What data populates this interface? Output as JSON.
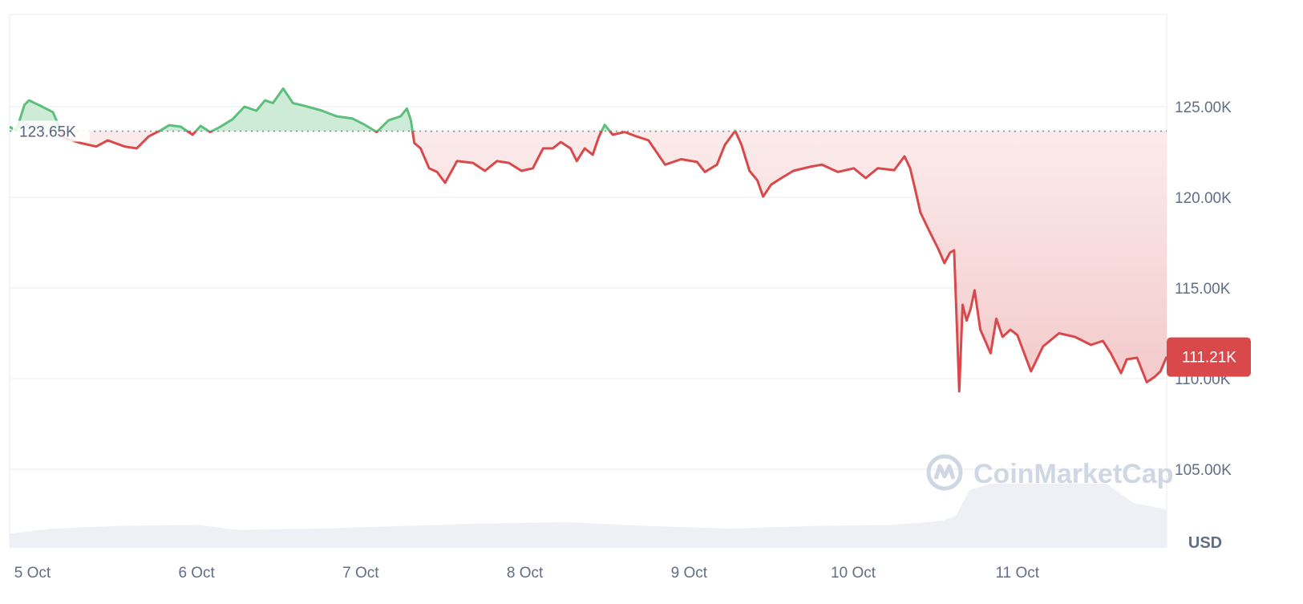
{
  "chart_data": {
    "type": "line",
    "currency_label": "USD",
    "baseline_value": 123.65,
    "baseline_label": "123.65K",
    "current_value": 111.21,
    "current_label": "111.21K",
    "ylim": [
      102,
      127.5
    ],
    "y_ticks": [
      {
        "value": 125,
        "label": "125.00K"
      },
      {
        "value": 120,
        "label": "120.00K"
      },
      {
        "value": 115,
        "label": "115.00K"
      },
      {
        "value": 110,
        "label": "110.00K"
      },
      {
        "value": 105,
        "label": "105.00K"
      }
    ],
    "x_ticks": [
      "5 Oct",
      "6 Oct",
      "7 Oct",
      "8 Oct",
      "9 Oct",
      "10 Oct",
      "11 Oct"
    ],
    "xlim": [
      "4 Oct 20:40",
      "11 Oct 21:50"
    ],
    "grid": true,
    "colors": {
      "up": "#5cbf7c",
      "up_fill": "#cdebd7",
      "down": "#d9484a",
      "down_fill": "#f3c9ca",
      "grid": "#eff2f5",
      "volume": "#eef0f5"
    },
    "watermark": "CoinMarketCap",
    "series": [
      {
        "values": [
          [
            "4 Oct 20:40",
            123.89
          ],
          [
            "4 Oct 21:40",
            123.7
          ],
          [
            "4 Oct 22:50",
            125.1
          ],
          [
            "4 Oct 23:30",
            125.35
          ],
          [
            "5 Oct 01:10",
            125.05
          ],
          [
            "5 Oct 03:00",
            124.7
          ],
          [
            "5 Oct 03:30",
            124.25
          ],
          [
            "5 Oct 04:40",
            123.27
          ],
          [
            "5 Oct 07:00",
            123.0
          ],
          [
            "5 Oct 09:20",
            122.8
          ],
          [
            "5 Oct 11:00",
            123.14
          ],
          [
            "5 Oct 13:30",
            122.8
          ],
          [
            "5 Oct 15:15",
            122.7
          ],
          [
            "5 Oct 17:00",
            123.36
          ],
          [
            "5 Oct 18:45",
            123.7
          ],
          [
            "5 Oct 20:00",
            123.98
          ],
          [
            "5 Oct 21:40",
            123.9
          ],
          [
            "5 Oct 23:25",
            123.45
          ],
          [
            "6 Oct 00:35",
            123.94
          ],
          [
            "6 Oct 02:00",
            123.6
          ],
          [
            "6 Oct 03:30",
            123.9
          ],
          [
            "6 Oct 05:15",
            124.3
          ],
          [
            "6 Oct 07:00",
            125.0
          ],
          [
            "6 Oct 08:45",
            124.78
          ],
          [
            "6 Oct 10:00",
            125.35
          ],
          [
            "6 Oct 11:10",
            125.2
          ],
          [
            "6 Oct 12:40",
            126.0
          ],
          [
            "6 Oct 14:05",
            125.2
          ],
          [
            "6 Oct 15:50",
            125.04
          ],
          [
            "6 Oct 18:10",
            124.8
          ],
          [
            "6 Oct 20:30",
            124.47
          ],
          [
            "6 Oct 22:50",
            124.34
          ],
          [
            "7 Oct 00:35",
            124.0
          ],
          [
            "7 Oct 02:20",
            123.6
          ],
          [
            "7 Oct 04:05",
            124.25
          ],
          [
            "7 Oct 05:50",
            124.47
          ],
          [
            "7 Oct 06:45",
            124.9
          ],
          [
            "7 Oct 07:20",
            124.25
          ],
          [
            "7 Oct 07:50",
            123.0
          ],
          [
            "7 Oct 08:45",
            122.7
          ],
          [
            "7 Oct 10:00",
            121.6
          ],
          [
            "7 Oct 11:10",
            121.4
          ],
          [
            "7 Oct 12:20",
            120.8
          ],
          [
            "7 Oct 14:05",
            122.0
          ],
          [
            "7 Oct 16:25",
            121.9
          ],
          [
            "7 Oct 18:10",
            121.46
          ],
          [
            "7 Oct 19:55",
            122.0
          ],
          [
            "7 Oct 21:40",
            121.9
          ],
          [
            "7 Oct 23:30",
            121.46
          ],
          [
            "8 Oct 01:10",
            121.6
          ],
          [
            "8 Oct 02:40",
            122.7
          ],
          [
            "8 Oct 04:05",
            122.7
          ],
          [
            "8 Oct 05:15",
            123.05
          ],
          [
            "8 Oct 06:40",
            122.7
          ],
          [
            "8 Oct 07:35",
            122.0
          ],
          [
            "8 Oct 08:45",
            122.7
          ],
          [
            "8 Oct 09:55",
            122.35
          ],
          [
            "8 Oct 10:50",
            123.36
          ],
          [
            "8 Oct 11:40",
            124.0
          ],
          [
            "8 Oct 12:50",
            123.45
          ],
          [
            "8 Oct 14:35",
            123.6
          ],
          [
            "8 Oct 16:20",
            123.36
          ],
          [
            "8 Oct 18:05",
            123.14
          ],
          [
            "8 Oct 20:30",
            121.8
          ],
          [
            "8 Oct 22:50",
            122.1
          ],
          [
            "9 Oct 01:10",
            121.95
          ],
          [
            "9 Oct 02:20",
            121.4
          ],
          [
            "9 Oct 04:05",
            121.8
          ],
          [
            "9 Oct 05:15",
            122.9
          ],
          [
            "9 Oct 06:45",
            123.67
          ],
          [
            "9 Oct 07:40",
            122.9
          ],
          [
            "9 Oct 08:50",
            121.46
          ],
          [
            "9 Oct 10:00",
            120.93
          ],
          [
            "9 Oct 10:50",
            120.04
          ],
          [
            "9 Oct 12:00",
            120.7
          ],
          [
            "9 Oct 13:30",
            121.06
          ],
          [
            "9 Oct 15:15",
            121.46
          ],
          [
            "9 Oct 17:40",
            121.68
          ],
          [
            "9 Oct 19:25",
            121.8
          ],
          [
            "9 Oct 21:45",
            121.4
          ],
          [
            "10 Oct 00:05",
            121.6
          ],
          [
            "10 Oct 01:50",
            121.06
          ],
          [
            "10 Oct 03:35",
            121.6
          ],
          [
            "10 Oct 06:00",
            121.5
          ],
          [
            "10 Oct 07:30",
            122.26
          ],
          [
            "10 Oct 08:20",
            121.6
          ],
          [
            "10 Oct 09:10",
            120.27
          ],
          [
            "10 Oct 09:50",
            119.16
          ],
          [
            "10 Oct 11:15",
            118.05
          ],
          [
            "10 Oct 12:25",
            117.17
          ],
          [
            "10 Oct 13:20",
            116.37
          ],
          [
            "10 Oct 14:10",
            116.95
          ],
          [
            "10 Oct 14:45",
            117.08
          ],
          [
            "10 Oct 15:30",
            109.3
          ],
          [
            "10 Oct 16:00",
            114.07
          ],
          [
            "10 Oct 16:35",
            113.2
          ],
          [
            "10 Oct 17:10",
            113.85
          ],
          [
            "10 Oct 17:45",
            114.87
          ],
          [
            "10 Oct 18:35",
            112.7
          ],
          [
            "10 Oct 20:05",
            111.4
          ],
          [
            "10 Oct 20:55",
            113.3
          ],
          [
            "10 Oct 21:50",
            112.3
          ],
          [
            "10 Oct 23:00",
            112.7
          ],
          [
            "11 Oct 00:00",
            112.4
          ],
          [
            "11 Oct 02:00",
            110.4
          ],
          [
            "11 Oct 03:45",
            111.77
          ],
          [
            "11 Oct 06:05",
            112.5
          ],
          [
            "11 Oct 08:25",
            112.3
          ],
          [
            "11 Oct 10:45",
            111.86
          ],
          [
            "11 Oct 12:30",
            112.08
          ],
          [
            "11 Oct 13:40",
            111.4
          ],
          [
            "11 Oct 15:10",
            110.3
          ],
          [
            "11 Oct 16:00",
            111.06
          ],
          [
            "11 Oct 17:30",
            111.15
          ],
          [
            "11 Oct 18:55",
            109.8
          ],
          [
            "11 Oct 20:05",
            110.1
          ],
          [
            "11 Oct 20:55",
            110.4
          ],
          [
            "11 Oct 21:50",
            111.21
          ]
        ]
      }
    ],
    "volume_relative": [
      [
        "4 Oct 20:40",
        0.22
      ],
      [
        "5 Oct 03:00",
        0.3
      ],
      [
        "5 Oct 12:00",
        0.34
      ],
      [
        "6 Oct 00:00",
        0.36
      ],
      [
        "6 Oct 06:00",
        0.28
      ],
      [
        "6 Oct 18:00",
        0.3
      ],
      [
        "7 Oct 06:00",
        0.34
      ],
      [
        "7 Oct 18:00",
        0.38
      ],
      [
        "8 Oct 06:00",
        0.4
      ],
      [
        "8 Oct 18:00",
        0.34
      ],
      [
        "9 Oct 06:00",
        0.3
      ],
      [
        "9 Oct 18:00",
        0.34
      ],
      [
        "10 Oct 06:00",
        0.36
      ],
      [
        "10 Oct 13:00",
        0.42
      ],
      [
        "10 Oct 15:00",
        0.5
      ],
      [
        "10 Oct 17:00",
        0.9
      ],
      [
        "10 Oct 20:00",
        1.0
      ],
      [
        "11 Oct 06:00",
        1.0
      ],
      [
        "11 Oct 13:00",
        1.0
      ],
      [
        "11 Oct 15:00",
        0.85
      ],
      [
        "11 Oct 17:00",
        0.7
      ],
      [
        "11 Oct 21:50",
        0.6
      ]
    ]
  }
}
